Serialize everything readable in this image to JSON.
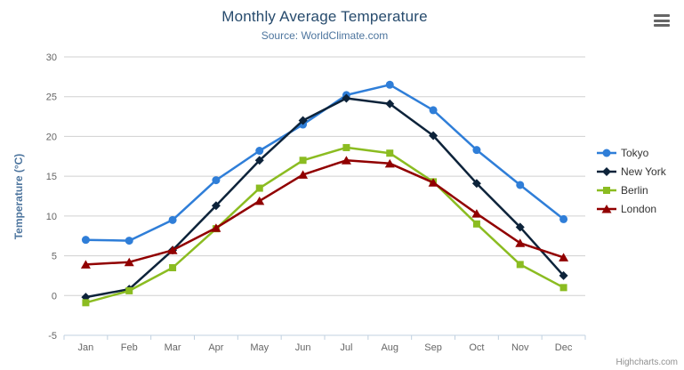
{
  "title": "Monthly Average Temperature",
  "subtitle": "Source: WorldClimate.com",
  "credit": "Highcharts.com",
  "colors": {
    "title": "#274b6d",
    "subtitle": "#4d759e",
    "axis_title": "#4d759e",
    "axis_labels": "#666666",
    "grid_line": "#d0d0d0",
    "axis_line": "#c0d0e0",
    "legend_text": "#333333",
    "credit_text": "#909090",
    "menu_icon": "#666666"
  },
  "chart_data": {
    "type": "line",
    "title": "Monthly Average Temperature",
    "subtitle": "Source: WorldClimate.com",
    "categories": [
      "Jan",
      "Feb",
      "Mar",
      "Apr",
      "May",
      "Jun",
      "Jul",
      "Aug",
      "Sep",
      "Oct",
      "Nov",
      "Dec"
    ],
    "series": [
      {
        "name": "Tokyo",
        "color": "#2f7ed8",
        "marker": "circle",
        "values": [
          7.0,
          6.9,
          9.5,
          14.5,
          18.2,
          21.5,
          25.2,
          26.5,
          23.3,
          18.3,
          13.9,
          9.6
        ]
      },
      {
        "name": "New York",
        "color": "#0d233a",
        "marker": "diamond",
        "values": [
          -0.2,
          0.8,
          5.7,
          11.3,
          17.0,
          22.0,
          24.8,
          24.1,
          20.1,
          14.1,
          8.6,
          2.5
        ]
      },
      {
        "name": "Berlin",
        "color": "#8bbc21",
        "marker": "square",
        "values": [
          -0.9,
          0.6,
          3.5,
          8.4,
          13.5,
          17.0,
          18.6,
          17.9,
          14.3,
          9.0,
          3.9,
          1.0
        ]
      },
      {
        "name": "London",
        "color": "#910000",
        "marker": "triangle",
        "values": [
          3.9,
          4.2,
          5.7,
          8.5,
          11.9,
          15.2,
          17.0,
          16.6,
          14.2,
          10.3,
          6.6,
          4.8
        ]
      }
    ],
    "xlabel": "",
    "ylabel": "Temperature (°C)",
    "ylim": [
      -5,
      30
    ],
    "yticks": [
      -5,
      0,
      5,
      10,
      15,
      20,
      25,
      30
    ],
    "grid": true,
    "legend_position": "right"
  }
}
